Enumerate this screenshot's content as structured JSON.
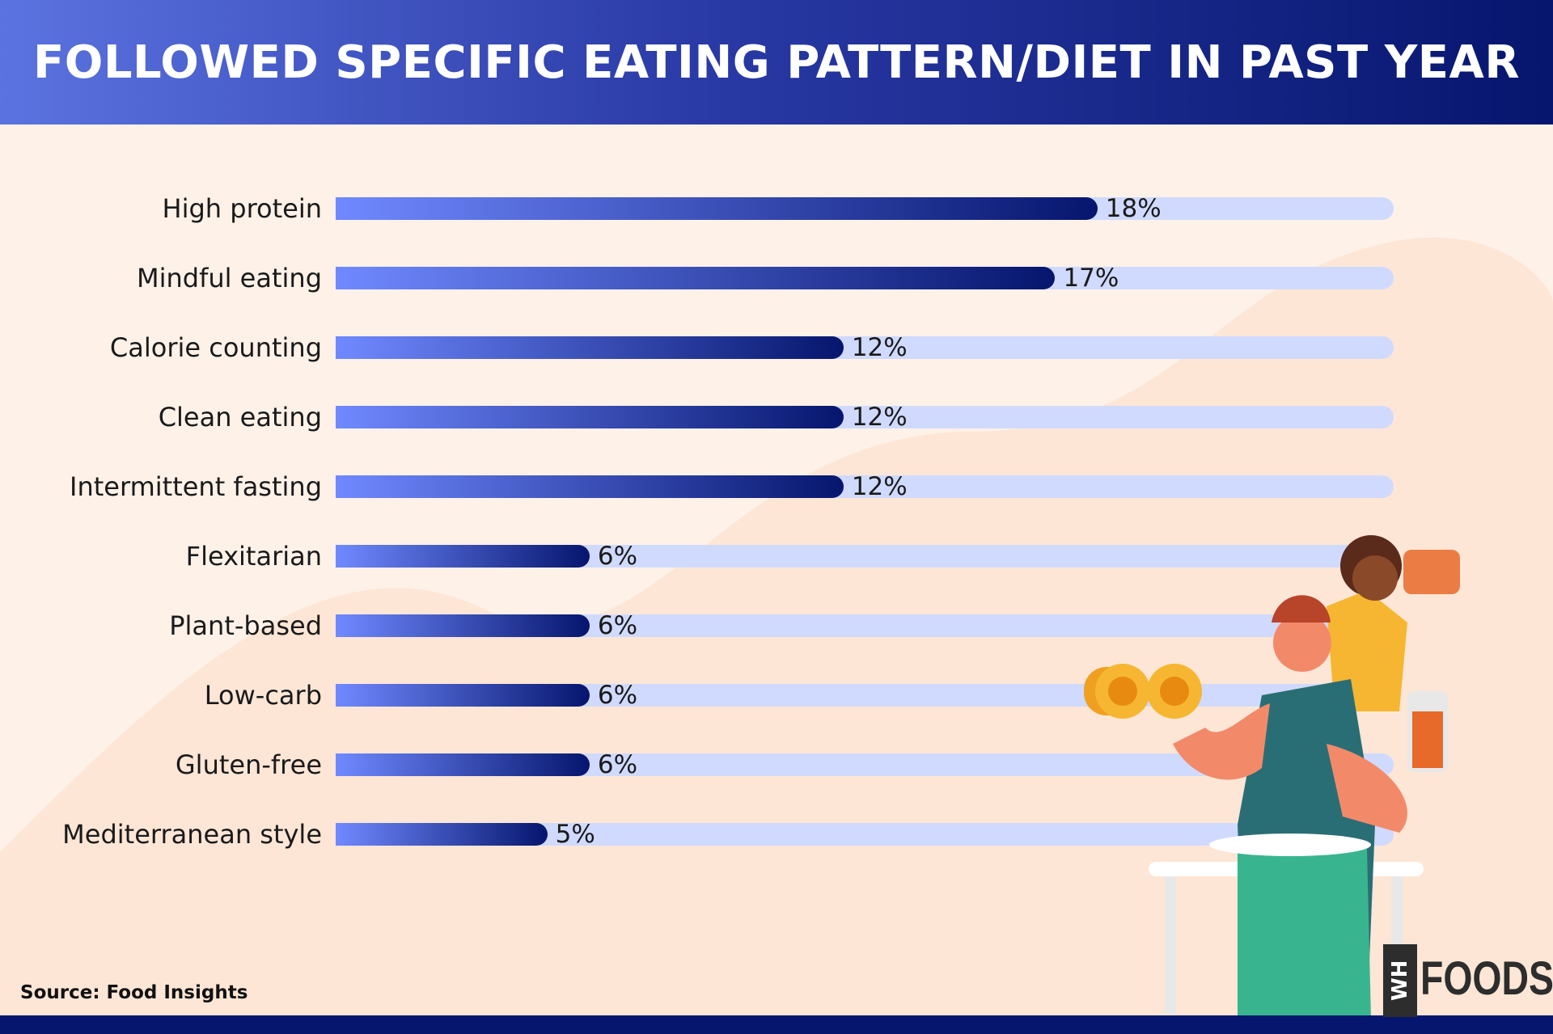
{
  "title": "FOLLOWED SPECIFIC EATING PATTERN/DIET IN PAST YEAR",
  "source": "Source: Food Insights",
  "logo": {
    "box": "WH",
    "text": "FOODS"
  },
  "colors": {
    "header_start": "#5b73e0",
    "header_end": "#06166e",
    "bar_start": "#7089ff",
    "bar_end": "#06166e",
    "track": "#d0daff",
    "background": "#fdf1e8"
  },
  "chart_data": {
    "type": "bar",
    "orientation": "horizontal",
    "title": "FOLLOWED SPECIFIC EATING PATTERN/DIET IN PAST YEAR",
    "categories": [
      "High protein",
      "Mindful eating",
      "Calorie counting",
      "Clean eating",
      "Intermittent fasting",
      "Flexitarian",
      "Plant-based",
      "Low-carb",
      "Gluten-free",
      "Mediterranean style"
    ],
    "values": [
      18,
      17,
      12,
      12,
      12,
      6,
      6,
      6,
      6,
      5
    ],
    "labels": [
      "18%",
      "17%",
      "12%",
      "12%",
      "12%",
      "6%",
      "6%",
      "6%",
      "6%",
      "5%"
    ],
    "xlim": [
      0,
      25
    ],
    "grid": false
  }
}
